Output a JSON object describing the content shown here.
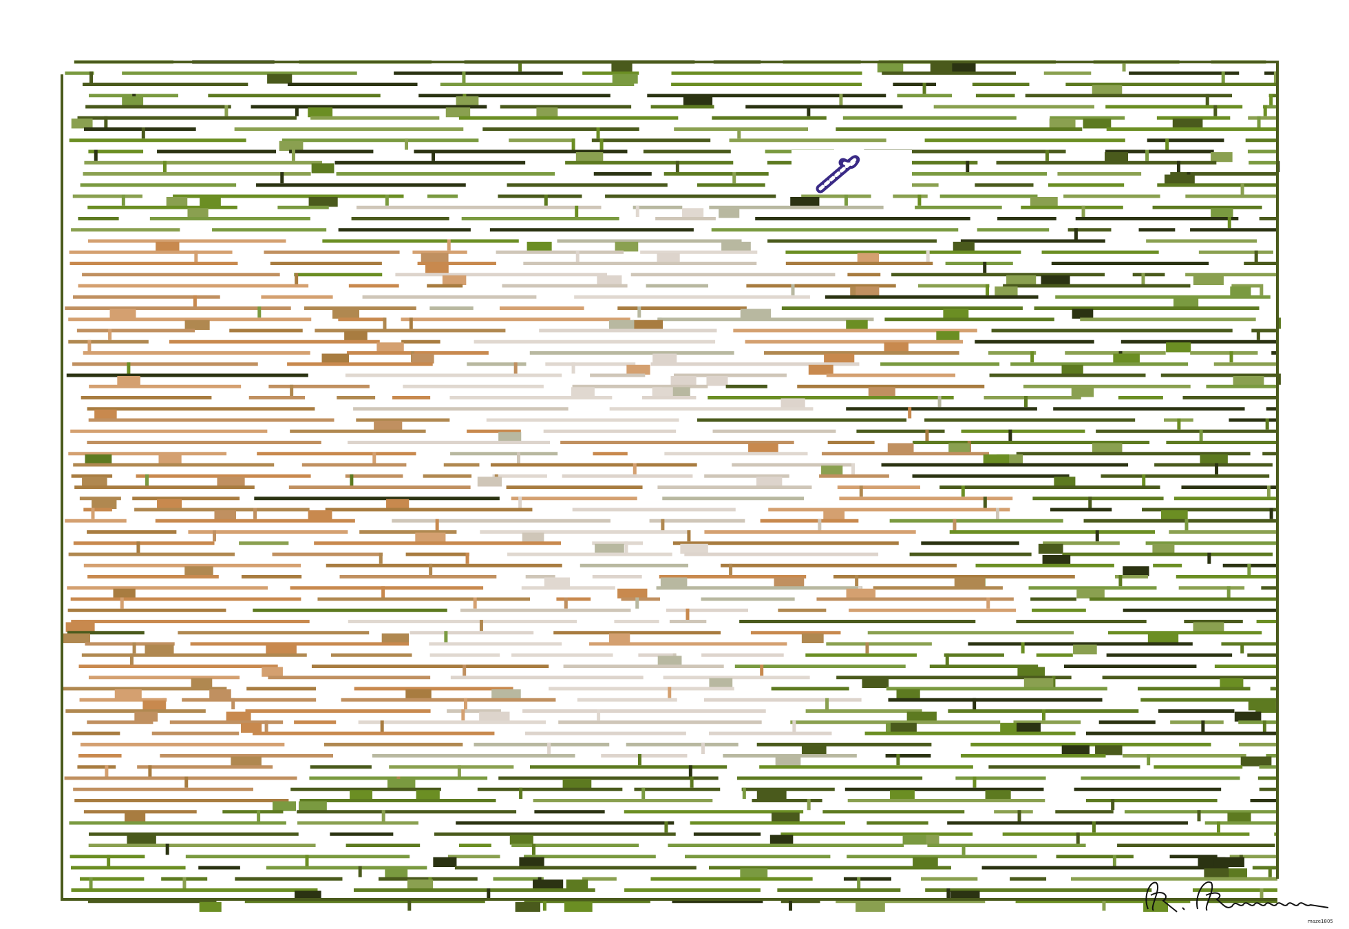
{
  "footer": {
    "code": "maze1805"
  }
}
